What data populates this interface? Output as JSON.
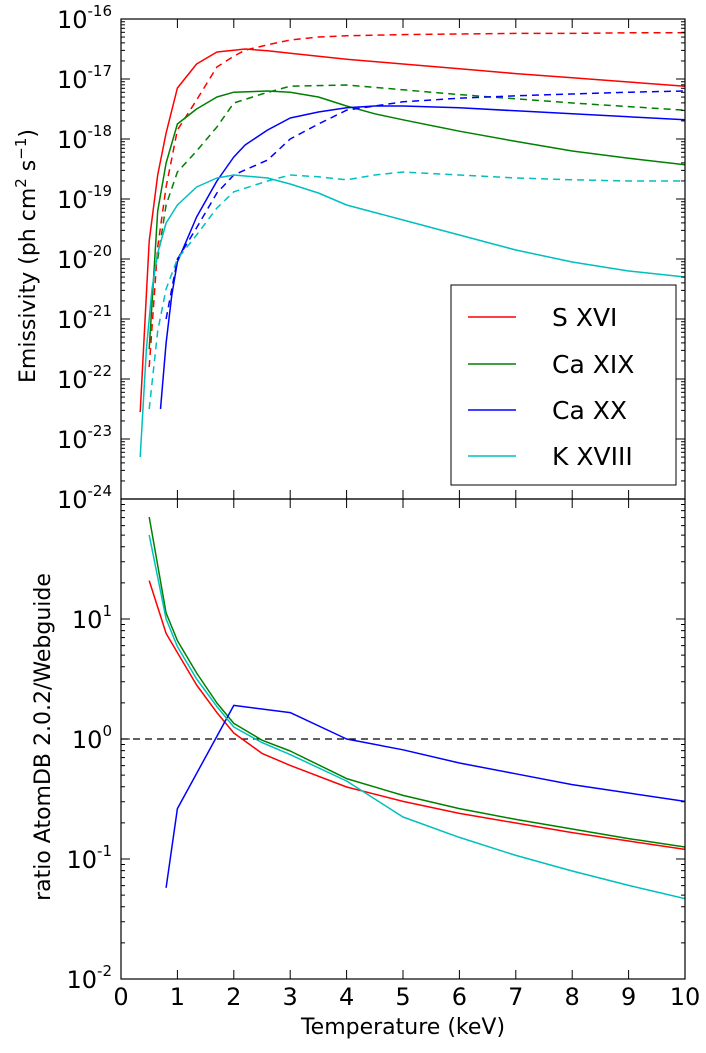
{
  "chart_data": [
    {
      "type": "line",
      "panel": "top",
      "xlabel": "",
      "ylabel": "Emissivity (ph cm² s⁻¹)",
      "ylabel_parts": {
        "main": "Emissivity (ph cm",
        "sup1": "2",
        "mid": " s",
        "sup2": "−1",
        "end": ")"
      },
      "xscale": "linear",
      "yscale": "log",
      "xlim": [
        0,
        10
      ],
      "ylim_exp": [
        -24,
        -16
      ],
      "x_ticks": [
        "0",
        "1",
        "2",
        "3",
        "4",
        "5",
        "6",
        "7",
        "8",
        "9",
        "10"
      ],
      "y_tick_exponents": [
        "-24",
        "-23",
        "-22",
        "-21",
        "-20",
        "-19",
        "-18",
        "-17",
        "-16"
      ],
      "legend_position": "lower-right",
      "series": [
        {
          "name": "S XVI",
          "color": "#ff0000",
          "style": "solid",
          "x": [
            0.34,
            0.5,
            0.65,
            0.8,
            1.0,
            1.34,
            1.7,
            2.0,
            2.2,
            2.6,
            3.0,
            3.5,
            4.0,
            5.0,
            6.0,
            7.0,
            8.0,
            9.0,
            10.0
          ],
          "log10_y": [
            -22.55,
            -19.7,
            -18.6,
            -17.9,
            -17.15,
            -16.75,
            -16.55,
            -16.52,
            -16.5,
            -16.53,
            -16.57,
            -16.62,
            -16.67,
            -16.75,
            -16.83,
            -16.91,
            -16.98,
            -17.05,
            -17.12
          ]
        },
        {
          "name": "S XVI AtomDB",
          "legend": false,
          "color": "#ff0000",
          "style": "dashed",
          "x": [
            0.5,
            0.65,
            0.8,
            1.0,
            1.34,
            1.7,
            2.0,
            2.2,
            2.6,
            3.0,
            3.5,
            4.0,
            5.0,
            6.0,
            7.0,
            8.0,
            9.0,
            10.0
          ],
          "log10_y": [
            -21.8,
            -19.8,
            -18.8,
            -17.85,
            -17.35,
            -16.8,
            -16.62,
            -16.52,
            -16.43,
            -16.35,
            -16.3,
            -16.28,
            -16.26,
            -16.25,
            -16.24,
            -16.24,
            -16.23,
            -16.23
          ]
        },
        {
          "name": "Ca XIX",
          "color": "#008000",
          "style": "solid",
          "x": [
            0.5,
            0.65,
            0.8,
            1.0,
            1.34,
            1.7,
            2.0,
            2.6,
            3.0,
            3.5,
            4.0,
            4.5,
            5.0,
            6.0,
            7.0,
            8.0,
            9.0,
            10.0
          ],
          "log10_y": [
            -21.5,
            -19.2,
            -18.4,
            -17.75,
            -17.5,
            -17.3,
            -17.22,
            -17.2,
            -17.22,
            -17.3,
            -17.45,
            -17.58,
            -17.68,
            -17.87,
            -18.04,
            -18.2,
            -18.32,
            -18.43
          ]
        },
        {
          "name": "Ca XIX AtomDB",
          "legend": false,
          "color": "#008000",
          "style": "dashed",
          "x": [
            0.65,
            0.8,
            1.0,
            1.34,
            1.7,
            2.0,
            2.5,
            3.0,
            4.0,
            5.0,
            6.0,
            7.0,
            8.0,
            9.0,
            10.0
          ],
          "log10_y": [
            -20.0,
            -19.1,
            -18.55,
            -18.2,
            -17.8,
            -17.4,
            -17.25,
            -17.12,
            -17.1,
            -17.18,
            -17.26,
            -17.33,
            -17.4,
            -17.46,
            -17.52
          ]
        },
        {
          "name": "Ca XX",
          "color": "#0000ff",
          "style": "solid",
          "x": [
            0.7,
            0.8,
            0.9,
            1.0,
            1.34,
            1.7,
            2.0,
            2.2,
            2.6,
            3.0,
            3.5,
            4.0,
            4.5,
            5.0,
            6.0,
            7.0,
            8.0,
            9.0,
            10.0
          ],
          "log10_y": [
            -22.5,
            -21.4,
            -20.6,
            -20.05,
            -19.3,
            -18.7,
            -18.3,
            -18.1,
            -17.85,
            -17.65,
            -17.55,
            -17.48,
            -17.45,
            -17.45,
            -17.48,
            -17.53,
            -17.58,
            -17.63,
            -17.68
          ]
        },
        {
          "name": "Ca XX AtomDB",
          "legend": false,
          "color": "#0000ff",
          "style": "dashed",
          "x": [
            0.8,
            1.0,
            1.34,
            1.7,
            2.0,
            2.6,
            3.0,
            3.5,
            4.0,
            5.0,
            6.0,
            7.0,
            8.0,
            9.0,
            10.0
          ],
          "log10_y": [
            -21.0,
            -20.0,
            -19.48,
            -18.9,
            -18.6,
            -18.35,
            -18.0,
            -17.75,
            -17.52,
            -17.38,
            -17.32,
            -17.28,
            -17.25,
            -17.22,
            -17.2
          ]
        },
        {
          "name": "K XVIII",
          "color": "#00bfbf",
          "style": "solid",
          "x": [
            0.34,
            0.45,
            0.55,
            0.65,
            0.8,
            1.0,
            1.34,
            1.7,
            2.0,
            2.6,
            3.0,
            3.5,
            4.0,
            5.0,
            6.0,
            7.0,
            8.0,
            9.0,
            10.0
          ],
          "log10_y": [
            -23.3,
            -21.5,
            -20.5,
            -19.9,
            -19.4,
            -19.1,
            -18.8,
            -18.65,
            -18.6,
            -18.65,
            -18.75,
            -18.9,
            -19.1,
            -19.35,
            -19.6,
            -19.85,
            -20.05,
            -20.2,
            -20.3
          ]
        },
        {
          "name": "K XVIII AtomDB",
          "legend": false,
          "color": "#00bfbf",
          "style": "dashed",
          "x": [
            0.5,
            0.65,
            0.8,
            1.0,
            1.34,
            1.7,
            2.0,
            2.6,
            3.0,
            3.5,
            4.0,
            4.5,
            5.0,
            6.0,
            7.0,
            8.0,
            9.0,
            10.0
          ],
          "log10_y": [
            -22.5,
            -21.2,
            -20.5,
            -20.0,
            -19.6,
            -19.15,
            -18.88,
            -18.7,
            -18.6,
            -18.63,
            -18.68,
            -18.6,
            -18.55,
            -18.6,
            -18.65,
            -18.68,
            -18.7,
            -18.7
          ]
        }
      ]
    },
    {
      "type": "line",
      "panel": "bottom",
      "xlabel": "Temperature (keV)",
      "ylabel": "ratio AtomDB 2.0.2/Webguide",
      "xscale": "linear",
      "yscale": "log",
      "xlim": [
        0,
        10
      ],
      "ylim_exp": [
        -2,
        2
      ],
      "x_ticks": [
        "0",
        "1",
        "2",
        "3",
        "4",
        "5",
        "6",
        "7",
        "8",
        "9",
        "10"
      ],
      "y_tick_exponents": [
        "-2",
        "-1",
        "0",
        "1"
      ],
      "reference_line": {
        "y": 1,
        "color": "#000000",
        "style": "dashed"
      },
      "series": [
        {
          "name": "S XVI",
          "color": "#ff0000",
          "style": "solid",
          "x": [
            0.5,
            0.8,
            1.0,
            1.34,
            1.7,
            2.0,
            2.5,
            3.0,
            4.0,
            5.0,
            6.0,
            7.0,
            8.0,
            9.0,
            10.0
          ],
          "log10_y": [
            1.32,
            0.88,
            0.72,
            0.45,
            0.22,
            0.05,
            -0.12,
            -0.22,
            -0.4,
            -0.52,
            -0.62,
            -0.7,
            -0.78,
            -0.85,
            -0.92
          ]
        },
        {
          "name": "Ca XIX",
          "color": "#008000",
          "style": "solid",
          "x": [
            0.5,
            0.8,
            1.0,
            1.34,
            1.7,
            2.0,
            2.5,
            3.0,
            4.0,
            5.0,
            6.0,
            7.0,
            8.0,
            9.0,
            10.0
          ],
          "log10_y": [
            1.85,
            1.05,
            0.82,
            0.55,
            0.3,
            0.13,
            -0.01,
            -0.1,
            -0.33,
            -0.47,
            -0.58,
            -0.67,
            -0.75,
            -0.83,
            -0.9
          ]
        },
        {
          "name": "Ca XX",
          "color": "#0000ff",
          "style": "solid",
          "x": [
            0.8,
            1.0,
            2.0,
            3.0,
            4.0,
            5.0,
            6.0,
            7.0,
            8.0,
            9.0,
            10.0
          ],
          "log10_y": [
            -1.24,
            -0.58,
            0.28,
            0.22,
            0.0,
            -0.09,
            -0.2,
            -0.29,
            -0.38,
            -0.45,
            -0.52
          ]
        },
        {
          "name": "K XVIII",
          "color": "#00bfbf",
          "style": "solid",
          "x": [
            0.5,
            0.8,
            1.0,
            1.34,
            1.7,
            2.0,
            2.5,
            3.0,
            4.0,
            5.0,
            6.0,
            7.0,
            8.0,
            9.0,
            10.0
          ],
          "log10_y": [
            1.7,
            1.0,
            0.77,
            0.5,
            0.27,
            0.1,
            -0.03,
            -0.13,
            -0.35,
            -0.65,
            -0.82,
            -0.97,
            -1.1,
            -1.22,
            -1.33
          ]
        }
      ]
    }
  ],
  "ui": {
    "ytick_base": "10",
    "legend_entries": [
      "S XVI",
      "Ca XIX",
      "Ca XX",
      "K XVIII"
    ]
  }
}
